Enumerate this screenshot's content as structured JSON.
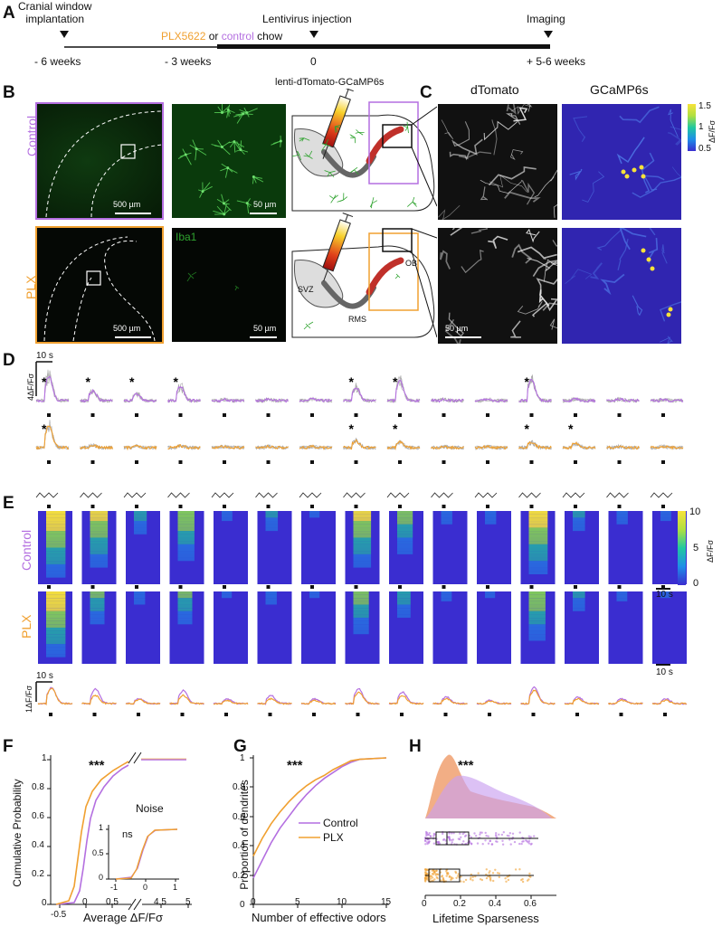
{
  "colors": {
    "control": "#b46fe0",
    "plx": "#f0a030",
    "heat_low": "#3a2dd0",
    "heat_high": "#f7e23a"
  },
  "panelA": {
    "letter": "A",
    "event1": "Cranial window\nimplantation",
    "event2": "Lentivirus injection",
    "event3": "Imaging",
    "chow_plx": "PLX5622",
    "chow_or": " or ",
    "chow_control": "control",
    "chow_suffix": " chow",
    "ticks": [
      "- 6 weeks",
      "- 3 weeks",
      "0",
      "+ 5-6 weeks"
    ]
  },
  "panelB": {
    "letter": "B",
    "row_control": "Control",
    "row_plx": "PLX",
    "scale_500": "500 µm",
    "scale_50": "50 µm",
    "iba1": "Iba1",
    "virus": "lenti-dTomato-GCaMP6s",
    "svz": "SVZ",
    "rms": "RMS",
    "ob": "OB"
  },
  "panelC": {
    "letter": "C",
    "col1": "dTomato",
    "col2": "GCaMP6s",
    "scale": "50 µm",
    "cbar_ticks": [
      "1.5",
      "1",
      "0.5"
    ],
    "cbar_label": "ΔF/Fσ"
  },
  "panelD": {
    "letter": "D",
    "scale_time": "10 s",
    "scale_amp": "4ΔF/Fσ",
    "star": "*",
    "control_stars": [
      true,
      true,
      true,
      true,
      false,
      false,
      false,
      true,
      true,
      false,
      false,
      true,
      false,
      false,
      false
    ],
    "plx_stars": [
      true,
      false,
      false,
      false,
      false,
      false,
      false,
      true,
      true,
      false,
      false,
      true,
      true,
      false,
      false
    ],
    "control_amp": [
      4.5,
      1.8,
      1.2,
      2.6,
      0.2,
      0.2,
      0.3,
      2.4,
      3.6,
      0.2,
      0.2,
      3.8,
      0.3,
      0.3,
      0.2
    ],
    "plx_amp": [
      4.0,
      0.4,
      0.3,
      0.3,
      0.2,
      0.2,
      0.2,
      1.2,
      1.0,
      0.2,
      0.2,
      1.0,
      0.8,
      0.2,
      0.2
    ]
  },
  "panelE": {
    "letter": "E",
    "row_control": "Control",
    "row_plx": "PLX",
    "scale_time": "10 s",
    "cbar_ticks": [
      "10",
      "5",
      "0"
    ],
    "cbar_label": "ΔF/Fσ",
    "control_strength": [
      0.95,
      0.8,
      0.35,
      0.7,
      0.15,
      0.3,
      0.1,
      0.8,
      0.6,
      0.2,
      0.2,
      0.9,
      0.3,
      0.2,
      0.15
    ],
    "plx_strength": [
      0.95,
      0.5,
      0.2,
      0.5,
      0.1,
      0.2,
      0.1,
      0.6,
      0.4,
      0.15,
      0.1,
      0.7,
      0.3,
      0.15,
      0.1
    ],
    "avg_scale_time": "10 s",
    "avg_scale_amp": "1ΔF/Fσ",
    "avg_control": [
      1.0,
      0.9,
      0.3,
      0.8,
      0.3,
      0.5,
      0.3,
      0.9,
      0.7,
      0.4,
      0.2,
      1.0,
      0.4,
      0.3,
      0.3
    ],
    "avg_plx": [
      0.95,
      0.5,
      0.25,
      0.5,
      0.2,
      0.3,
      0.2,
      0.7,
      0.5,
      0.3,
      0.15,
      0.8,
      0.3,
      0.2,
      0.2
    ]
  },
  "panelF": {
    "letter": "F",
    "ylabel": "Cumulative Probability",
    "xlabel": "Average  ΔF/Fσ",
    "yticks": [
      "1",
      "0.8",
      "0.6",
      "0.4",
      "0.2",
      "0"
    ],
    "xticks": [
      "-0.5",
      "0",
      "0.5",
      "4.5",
      "5"
    ],
    "sig": "***",
    "inset_title": "Noise",
    "inset_sig": "ns",
    "inset_yticks": [
      "1",
      "0.5",
      "0"
    ],
    "inset_xticks": [
      "-1",
      "0",
      "1"
    ]
  },
  "panelG": {
    "letter": "G",
    "ylabel": "Proportion of dendrites",
    "xlabel": "Number of effective odors",
    "yticks": [
      "1",
      "0.8",
      "0.6",
      "0.4",
      "0.2",
      "0"
    ],
    "xticks": [
      "0",
      "5",
      "10",
      "15"
    ],
    "sig": "***",
    "legend_control": "Control",
    "legend_plx": "PLX"
  },
  "panelH": {
    "letter": "H",
    "xlabel": "Lifetime Sparseness",
    "xticks": [
      "0",
      "0.2",
      "0.4",
      "0.6"
    ],
    "sig": "***"
  }
}
